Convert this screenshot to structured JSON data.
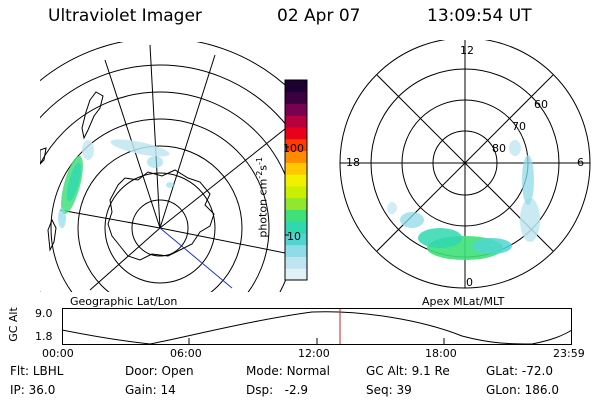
{
  "header": {
    "instrument": "Ultraviolet Imager",
    "date": "02 Apr 07",
    "time": "13:09:54 UT"
  },
  "left_map": {
    "caption": "Geographic Lat/Lon"
  },
  "colorbar": {
    "unit_label": "photon cm",
    "unit_exp1": "-2",
    "unit_mid": "s",
    "unit_exp2": "-1",
    "tick_high": "100",
    "tick_low": "10",
    "colors": [
      "#e0f2f8",
      "#bfe6f0",
      "#8fdbe8",
      "#4fd6d0",
      "#2fd8b0",
      "#3fe07a",
      "#8fe82f",
      "#c8f000",
      "#f0f000",
      "#ffc800",
      "#ff8c00",
      "#ff3c00",
      "#e8001c",
      "#b8003c",
      "#7a0050",
      "#3c0040",
      "#1c0030"
    ]
  },
  "right_map": {
    "caption": "Apex MLat/MLT",
    "mlt_labels": {
      "top": "12",
      "left": "18",
      "right": "6",
      "bottom": "0"
    },
    "lat_labels": [
      "60",
      "70",
      "80"
    ]
  },
  "timeline": {
    "ylabel": "GC Alt",
    "y_top": "9.0",
    "y_bottom": "1.8",
    "ticks": [
      "00:00",
      "06:00",
      "12:00",
      "18:00",
      "23:59"
    ],
    "marker_color": "#cc2222"
  },
  "status": {
    "filter_label": "Flt:",
    "filter_value": "LBHL",
    "ip_label": "IP:",
    "ip_value": "36.0",
    "door_label": "Door:",
    "door_value": "Open",
    "gain_label": "Gain:",
    "gain_value": "14",
    "mode_label": "Mode:",
    "mode_value": "Normal",
    "dsp_label": "Dsp:",
    "dsp_value": "-2.9",
    "gcalt_label": "GC Alt:",
    "gcalt_value": "9.1 Re",
    "seq_label": "Seq:",
    "seq_value": "39",
    "glat_label": "GLat:",
    "glat_value": "-72.0",
    "glon_label": "GLon:",
    "glon_value": "186.0"
  }
}
